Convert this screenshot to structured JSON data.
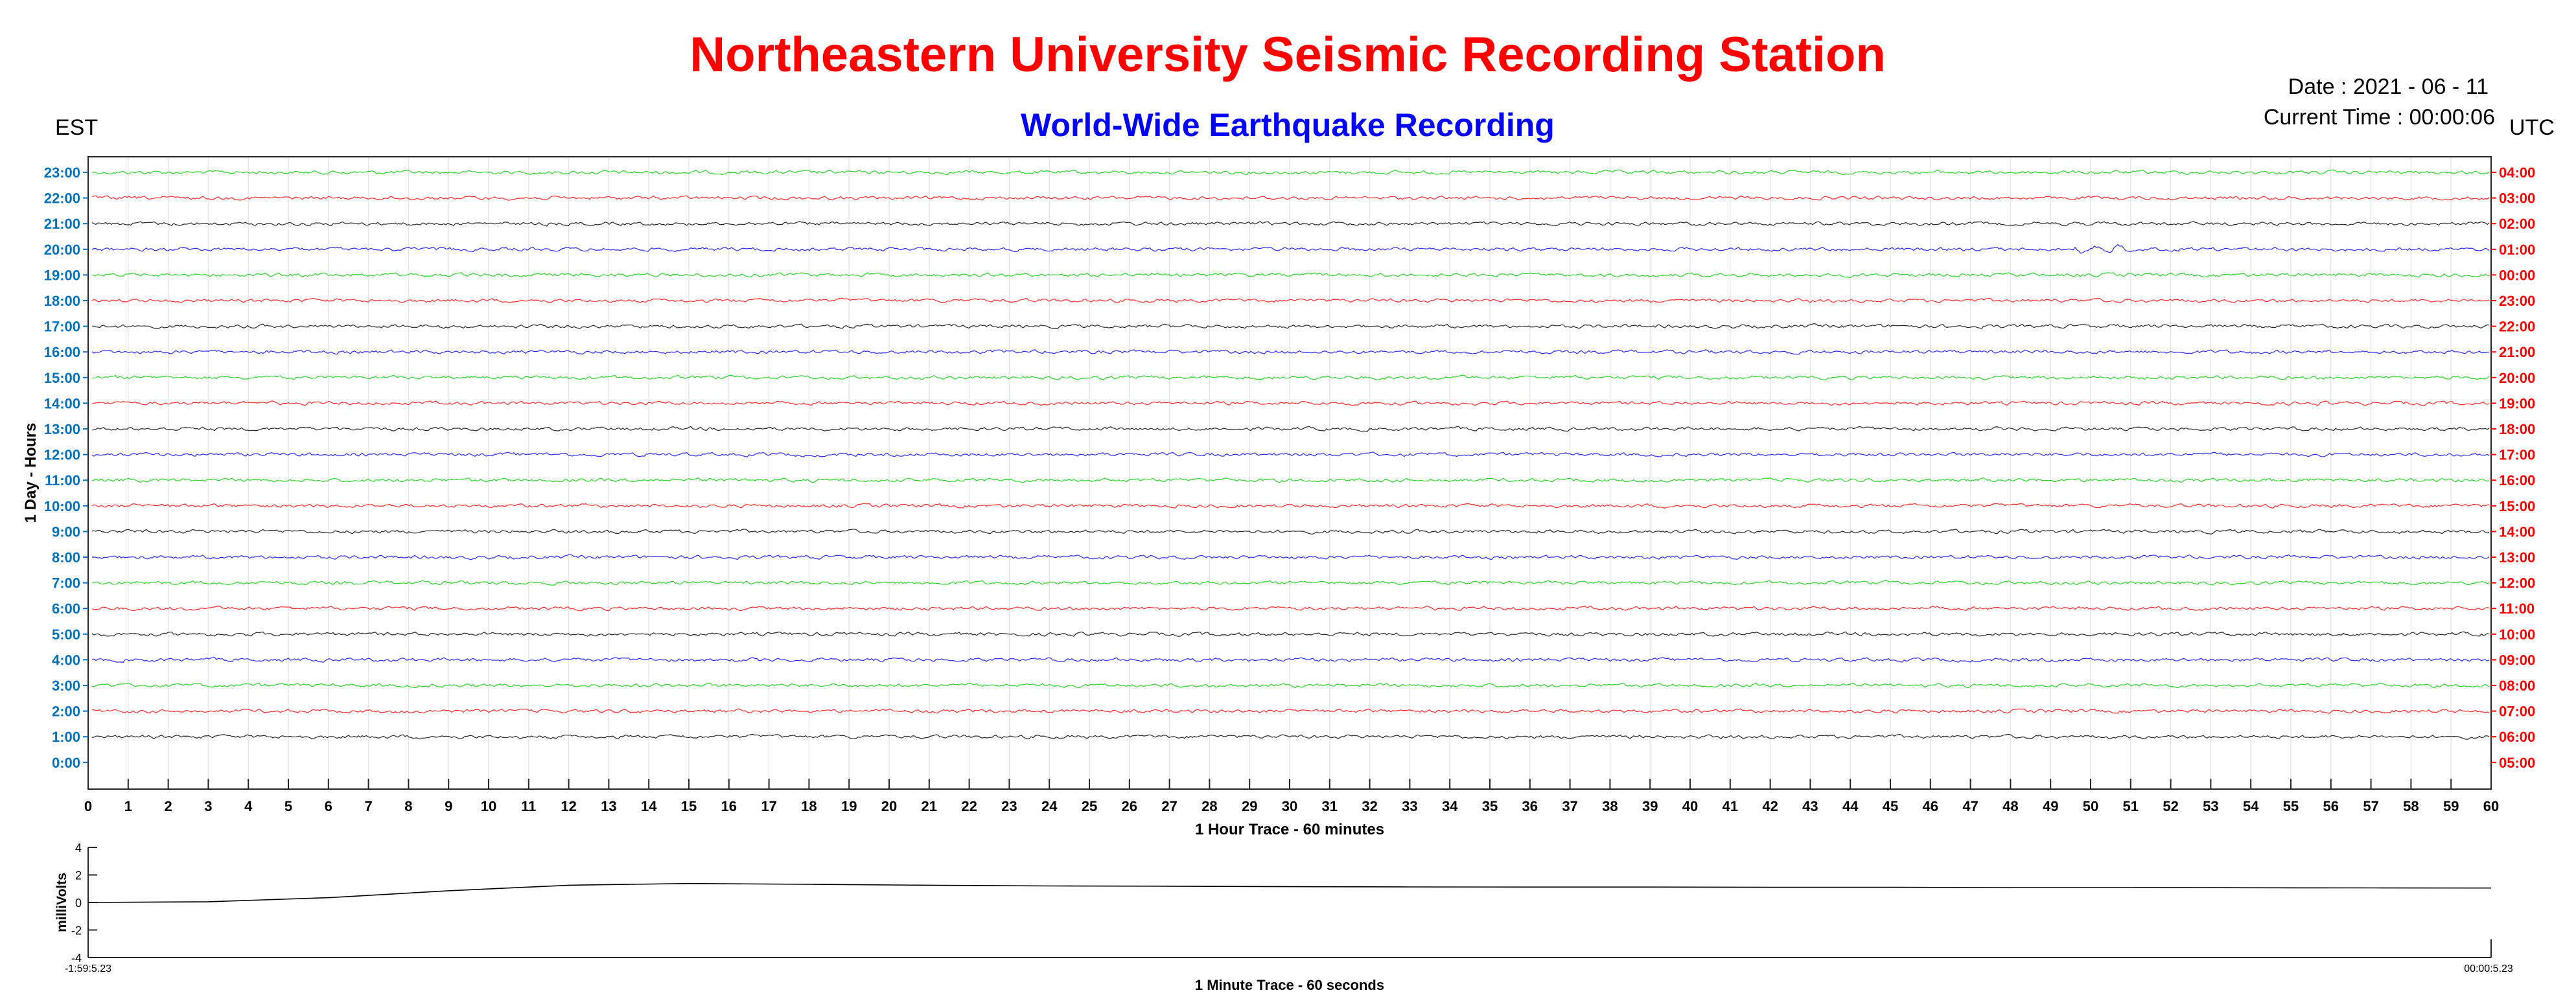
{
  "header": {
    "title": "Northeastern University Seismic Recording Station",
    "subtitle": "World-Wide Earthquake Recording",
    "date_text": "Date : 2021 - 06 - 11",
    "current_time_text": "Current Time : 00:00:06",
    "left_zone": "EST",
    "right_zone": "UTC"
  },
  "colors": {
    "title": "#ff0000",
    "subtitle": "#0000ff",
    "left_axis": "#0072bd",
    "right_axis": "#ff0000",
    "trace_cycle": [
      "#000000",
      "#0000ff",
      "#00cc00",
      "#ff0000"
    ]
  },
  "chart_data": [
    {
      "type": "line",
      "name": "helicorder",
      "ylabel": "1 Day - Hours",
      "xlabel": "1 Hour Trace - 60 minutes",
      "xlim": [
        0,
        60
      ],
      "x_ticks": [
        "0",
        "1",
        "2",
        "3",
        "4",
        "5",
        "6",
        "7",
        "8",
        "9",
        "10",
        "11",
        "12",
        "13",
        "14",
        "15",
        "16",
        "17",
        "18",
        "19",
        "20",
        "21",
        "22",
        "23",
        "24",
        "25",
        "26",
        "27",
        "28",
        "29",
        "30",
        "31",
        "32",
        "33",
        "34",
        "35",
        "36",
        "37",
        "38",
        "39",
        "40",
        "41",
        "42",
        "43",
        "44",
        "45",
        "46",
        "47",
        "48",
        "49",
        "50",
        "51",
        "52",
        "53",
        "54",
        "55",
        "56",
        "57",
        "58",
        "59",
        "60"
      ],
      "left_ticks": [
        "23:00",
        "22:00",
        "21:00",
        "20:00",
        "19:00",
        "18:00",
        "17:00",
        "16:00",
        "15:00",
        "14:00",
        "13:00",
        "12:00",
        "11:00",
        "10:00",
        "9:00",
        "8:00",
        "7:00",
        "6:00",
        "5:00",
        "4:00",
        "3:00",
        "2:00",
        "1:00",
        "0:00"
      ],
      "right_ticks": [
        "04:00",
        "03:00",
        "02:00",
        "01:00",
        "00:00",
        "23:00",
        "22:00",
        "21:00",
        "20:00",
        "19:00",
        "18:00",
        "17:00",
        "16:00",
        "15:00",
        "14:00",
        "13:00",
        "12:00",
        "11:00",
        "10:00",
        "09:00",
        "08:00",
        "07:00",
        "06:00",
        "05:00"
      ],
      "trace_colors": [
        "green",
        "red",
        "black",
        "blue",
        "green",
        "red",
        "black",
        "blue",
        "green",
        "red",
        "black",
        "blue",
        "green",
        "red",
        "black",
        "blue",
        "green",
        "red",
        "black",
        "blue",
        "green",
        "red",
        "black"
      ],
      "grid": true
    },
    {
      "type": "line",
      "name": "minute-trace",
      "ylabel": "milliVolts",
      "xlabel": "1 Minute Trace  - 60 seconds",
      "ylim": [
        -4,
        4
      ],
      "y_ticks": [
        "4",
        "2",
        "0",
        "-2",
        "-4"
      ],
      "x_start_label": "-1:59:5.23",
      "x_end_label": "00:00:5.23",
      "x": [
        0,
        3,
        6,
        9,
        12,
        15,
        18,
        21,
        24,
        27,
        30,
        33,
        36,
        39,
        42,
        45,
        48,
        51,
        54,
        57,
        60
      ],
      "y": [
        0.0,
        0.05,
        0.35,
        0.85,
        1.25,
        1.38,
        1.32,
        1.25,
        1.2,
        1.18,
        1.15,
        1.13,
        1.12,
        1.12,
        1.1,
        1.1,
        1.08,
        1.08,
        1.07,
        1.06,
        1.05
      ]
    }
  ]
}
